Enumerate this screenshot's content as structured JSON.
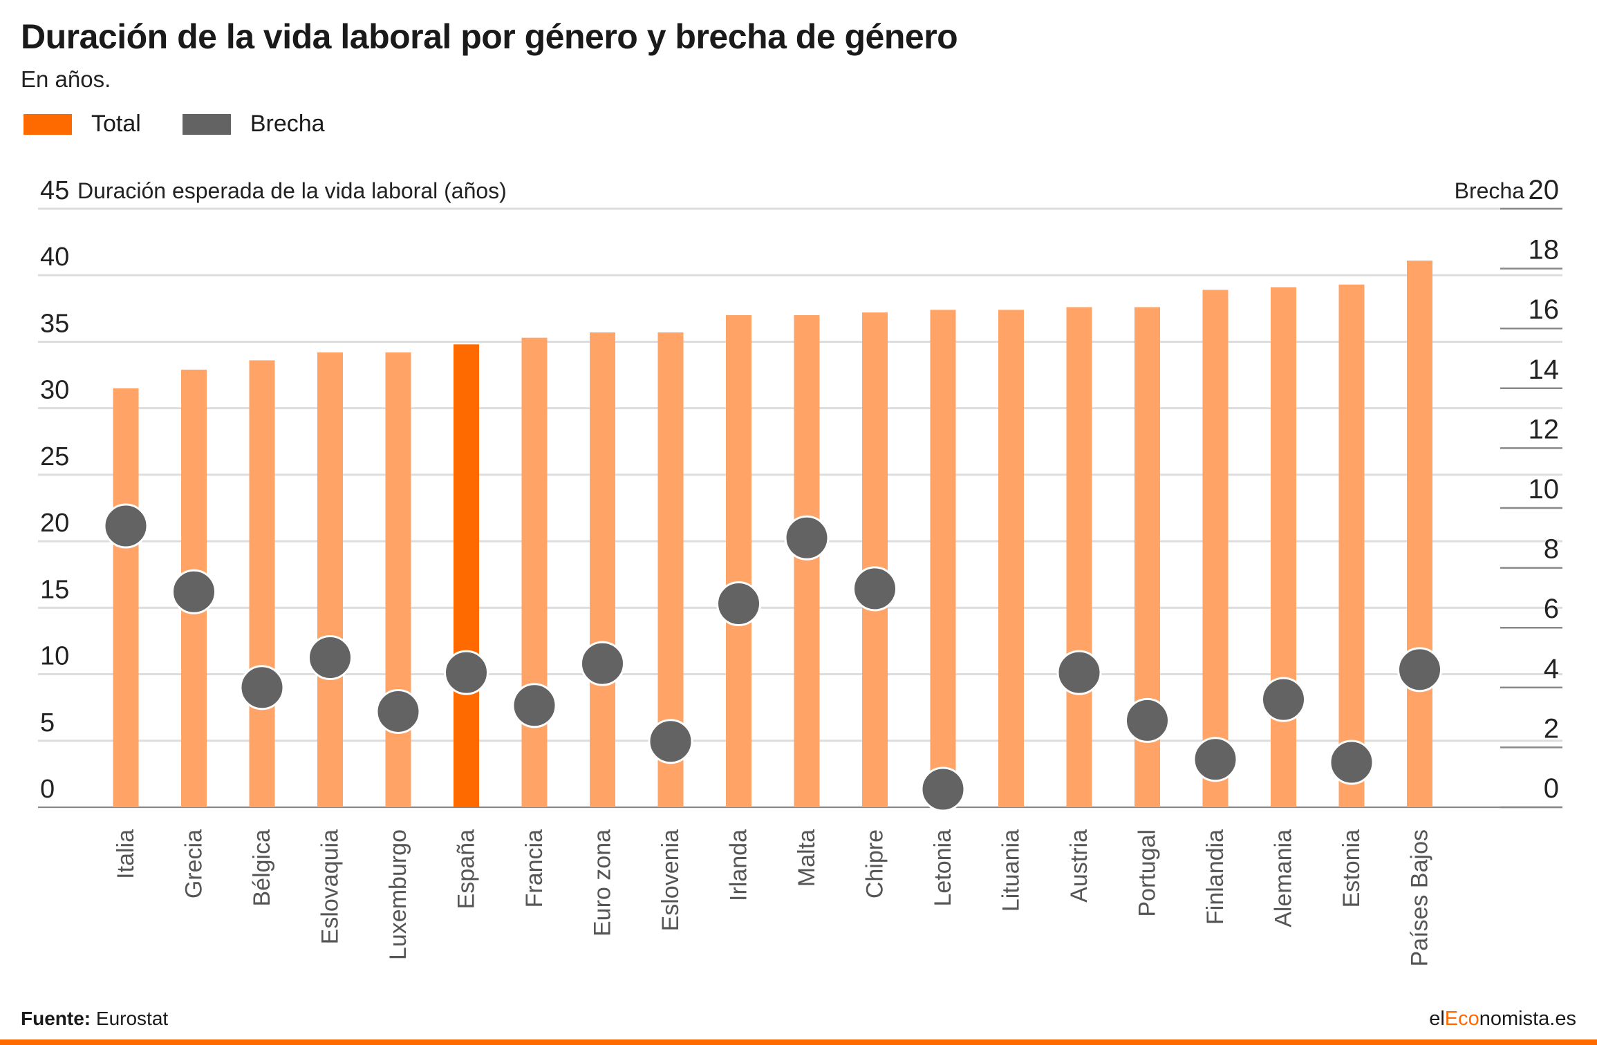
{
  "title": "Duración de la vida laboral por género y brecha de género",
  "subtitle": "En años.",
  "legend": [
    {
      "label": "Total",
      "color": "#ff6a00"
    },
    {
      "label": "Brecha",
      "color": "#636363"
    }
  ],
  "footer": {
    "source_label": "Fuente:",
    "source_value": "Eurostat",
    "brand_prefix": "el",
    "brand_accent": "Eco",
    "brand_suffix": "nomista.es"
  },
  "chart_data": {
    "type": "bar",
    "categories": [
      "Italia",
      "Grecia",
      "Bélgica",
      "Eslovaquia",
      "Luxemburgo",
      "España",
      "Francia",
      "Euro zona",
      "Eslovenia",
      "Irlanda",
      "Malta",
      "Chipre",
      "Letonia",
      "Lituania",
      "Austria",
      "Portugal",
      "Finlandia",
      "Alemania",
      "Estonia",
      "Países Bajos"
    ],
    "highlight_category": "España",
    "series": [
      {
        "name": "Total",
        "axis": "left",
        "values": [
          31.5,
          32.9,
          33.6,
          34.2,
          34.2,
          34.8,
          35.3,
          35.7,
          35.7,
          37.0,
          37.0,
          37.2,
          37.4,
          37.4,
          37.6,
          37.6,
          38.9,
          39.1,
          39.3,
          41.1
        ]
      },
      {
        "name": "Brecha",
        "axis": "right",
        "values": [
          9.4,
          7.2,
          4.0,
          5.0,
          3.2,
          4.5,
          3.4,
          4.8,
          2.2,
          6.8,
          9.0,
          7.3,
          0.6,
          null,
          4.5,
          2.9,
          1.6,
          3.6,
          1.5,
          4.6
        ]
      }
    ],
    "y_left": {
      "label": "Duración esperada de la vida laboral (años)",
      "min": 0,
      "max": 45,
      "ticks": [
        0,
        5,
        10,
        15,
        20,
        25,
        30,
        35,
        40,
        45
      ]
    },
    "y_right": {
      "label": "Brecha",
      "min": 0,
      "max": 20,
      "ticks": [
        0,
        2,
        4,
        6,
        8,
        10,
        12,
        14,
        16,
        18,
        20
      ]
    },
    "colors": {
      "bar": "#ffa366",
      "bar_highlight": "#ff6a00",
      "dot": "#636363",
      "grid": "#dddddd",
      "axis_line": "#888888"
    },
    "grid": true,
    "legend_position": "top-left"
  }
}
